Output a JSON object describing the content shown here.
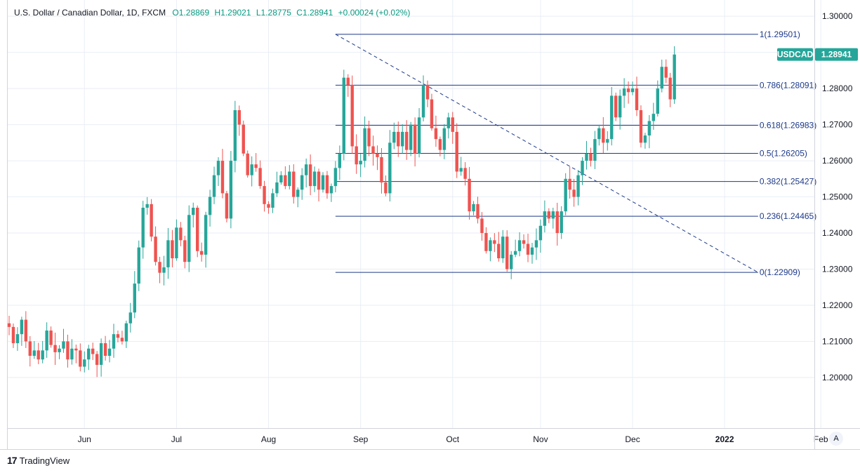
{
  "header": {
    "symbol": "U.S. Dollar / Canadian Dollar, 1D, FXCM",
    "open": "O1.28869",
    "high": "H1.29021",
    "low": "L1.28775",
    "close": "C1.28941",
    "change": "+0.00024 (+0.02%)"
  },
  "price_tag": {
    "symbol": "USDCAD",
    "price": "1.28941"
  },
  "branding": {
    "name": "TradingView"
  },
  "controls": {
    "auto_label": "A"
  },
  "colors": {
    "up": "#26a69a",
    "down": "#ef5350",
    "fib": "#1e3a8a",
    "grid": "#e9eef5",
    "axis_text": "#131722"
  },
  "chart_data": {
    "type": "candlestick",
    "title": "U.S. Dollar / Canadian Dollar, 1D, FXCM",
    "ylim": [
      1.186,
      1.3045
    ],
    "y_ticks": [
      "1.30000",
      "1.29000",
      "1.28000",
      "1.27000",
      "1.26000",
      "1.25000",
      "1.24000",
      "1.23000",
      "1.22000",
      "1.21000",
      "1.20000"
    ],
    "x_ticks": [
      {
        "label": "Jun",
        "index": 18
      },
      {
        "label": "Jul",
        "index": 40
      },
      {
        "label": "Aug",
        "index": 62
      },
      {
        "label": "Sep",
        "index": 84
      },
      {
        "label": "Oct",
        "index": 106
      },
      {
        "label": "Nov",
        "index": 127
      },
      {
        "label": "Dec",
        "index": 149
      },
      {
        "label": "2022",
        "index": 171
      },
      {
        "label": "Feb",
        "index": 194
      }
    ],
    "grid": true,
    "close_series": [
      1.214,
      1.2095,
      1.212,
      1.216,
      1.21,
      1.206,
      1.2075,
      1.205,
      1.2075,
      1.213,
      1.209,
      1.207,
      1.208,
      1.21,
      1.205,
      1.208,
      1.2075,
      1.203,
      1.205,
      1.208,
      1.2065,
      1.2035,
      1.2095,
      1.206,
      1.208,
      1.212,
      1.211,
      1.21,
      1.215,
      1.218,
      1.226,
      1.236,
      1.247,
      1.248,
      1.239,
      1.232,
      1.229,
      1.2305,
      1.238,
      1.233,
      1.2415,
      1.238,
      1.232,
      1.245,
      1.247,
      1.235,
      1.234,
      1.245,
      1.25,
      1.256,
      1.26,
      1.251,
      1.244,
      1.26,
      1.274,
      1.27,
      1.262,
      1.256,
      1.259,
      1.258,
      1.253,
      1.248,
      1.247,
      1.251,
      1.254,
      1.256,
      1.253,
      1.257,
      1.25,
      1.252,
      1.256,
      1.259,
      1.253,
      1.257,
      1.252,
      1.256,
      1.251,
      1.253,
      1.258,
      1.262,
      1.283,
      1.281,
      1.264,
      1.259,
      1.26,
      1.269,
      1.264,
      1.262,
      1.261,
      1.254,
      1.251,
      1.265,
      1.268,
      1.264,
      1.268,
      1.263,
      1.27,
      1.262,
      1.272,
      1.281,
      1.277,
      1.269,
      1.266,
      1.263,
      1.269,
      1.272,
      1.268,
      1.257,
      1.258,
      1.255,
      1.246,
      1.248,
      1.244,
      1.24,
      1.235,
      1.238,
      1.237,
      1.233,
      1.239,
      1.23,
      1.234,
      1.235,
      1.238,
      1.237,
      1.234,
      1.236,
      1.238,
      1.242,
      1.246,
      1.244,
      1.246,
      1.24,
      1.246,
      1.255,
      1.252,
      1.25,
      1.256,
      1.26,
      1.262,
      1.26,
      1.266,
      1.269,
      1.265,
      1.266,
      1.278,
      1.272,
      1.278,
      1.28,
      1.279,
      1.28,
      1.274,
      1.265,
      1.267,
      1.271,
      1.273,
      1.28,
      1.286,
      1.283,
      1.277,
      1.28941
    ],
    "fib_retracement": {
      "from_index": 78,
      "to_index": 179,
      "levels": [
        {
          "ratio": "1",
          "value": 1.29501,
          "label": "1(1.29501)"
        },
        {
          "ratio": "0.786",
          "value": 1.28091,
          "label": "0.786(1.28091)"
        },
        {
          "ratio": "0.618",
          "value": 1.26983,
          "label": "0.618(1.26983)"
        },
        {
          "ratio": "0.5",
          "value": 1.26205,
          "label": "0.5(1.26205)"
        },
        {
          "ratio": "0.382",
          "value": 1.25427,
          "label": "0.382(1.25427)"
        },
        {
          "ratio": "0.236",
          "value": 1.24465,
          "label": "0.236(1.24465)"
        },
        {
          "ratio": "0",
          "value": 1.22909,
          "label": "0(1.22909)"
        }
      ],
      "trend_line": {
        "from_value": 1.29501,
        "to_value": 1.22909
      }
    },
    "last_price": 1.28941
  }
}
